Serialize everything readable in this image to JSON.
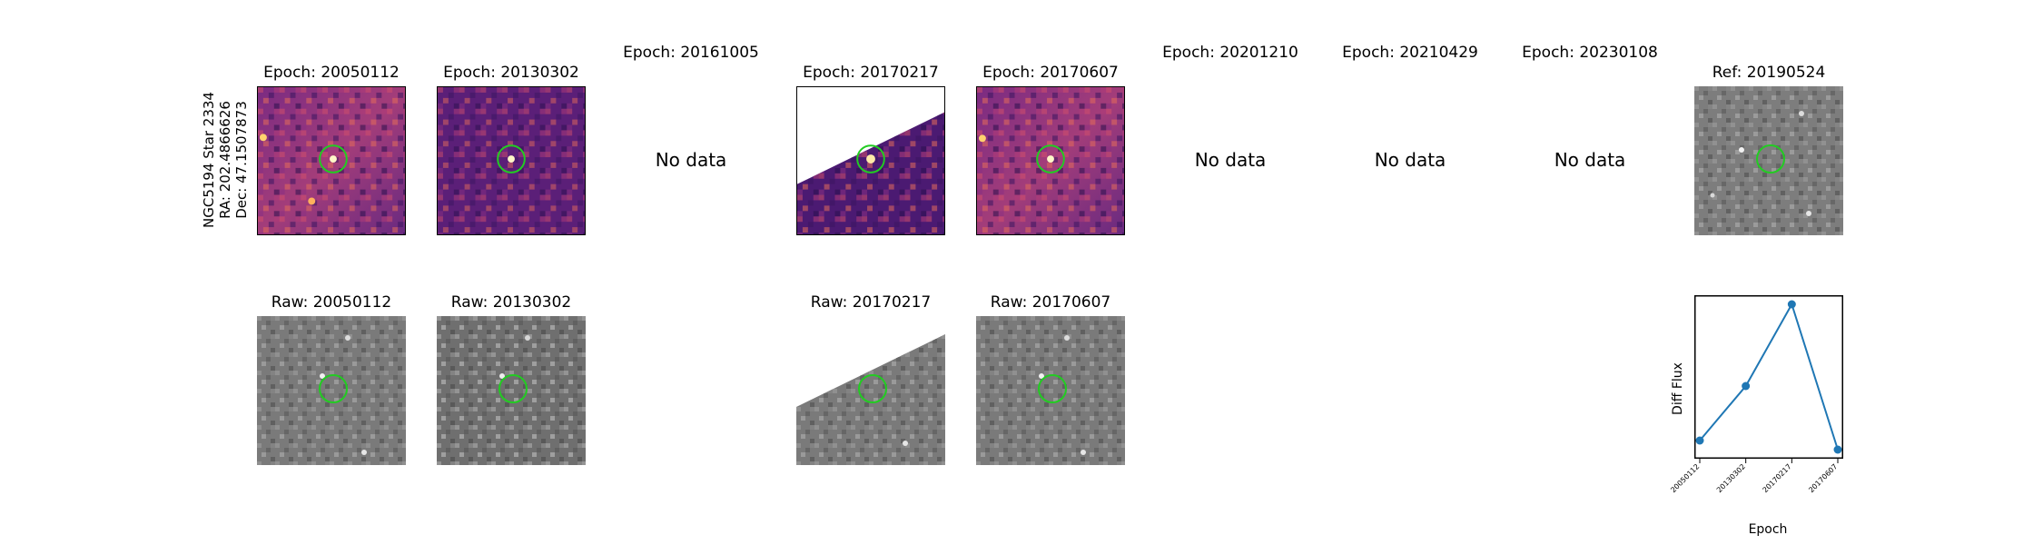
{
  "target": {
    "lines": [
      "NGC5194 Star 2334",
      "RA: 202.4866626",
      "Dec: 47.1507873"
    ]
  },
  "top_row": [
    {
      "title": "Epoch: 20050112",
      "has_data": true
    },
    {
      "title": "Epoch: 20130302",
      "has_data": true
    },
    {
      "title": "Epoch: 20161005",
      "has_data": false,
      "message": "No data"
    },
    {
      "title": "Epoch: 20170217",
      "has_data": true
    },
    {
      "title": "Epoch: 20170607",
      "has_data": true
    },
    {
      "title": "Epoch: 20201210",
      "has_data": false,
      "message": "No data"
    },
    {
      "title": "Epoch: 20210429",
      "has_data": false,
      "message": "No data"
    },
    {
      "title": "Epoch: 20230108",
      "has_data": false,
      "message": "No data"
    },
    {
      "title": "Ref: 20190524",
      "has_data": true
    }
  ],
  "bottom_row": [
    {
      "title": "Raw: 20050112"
    },
    {
      "title": "Raw: 20130302"
    },
    {
      "title": "Raw: 20170217"
    },
    {
      "title": "Raw: 20170607"
    }
  ],
  "colors": {
    "marker_circle": "#22cc22",
    "line_series": "#1f77b4",
    "diff_colormap": "magma",
    "raw_colormap": "gray"
  },
  "chart_data": {
    "type": "line",
    "title": "",
    "xlabel": "Epoch",
    "ylabel": "Diff Flux",
    "categories": [
      "20050112",
      "20130302",
      "20170217",
      "20170607"
    ],
    "series": [
      {
        "values": [
          0.08,
          0.38,
          0.83,
          0.03
        ]
      }
    ],
    "y_ticks_shown": false,
    "grid": false
  }
}
